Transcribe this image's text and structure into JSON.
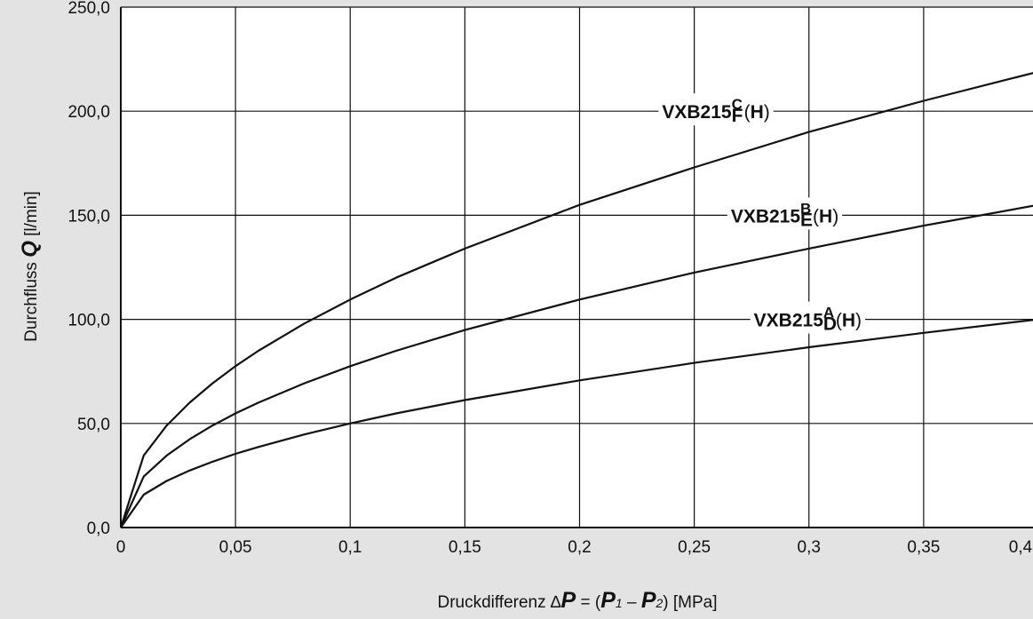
{
  "chart_data": {
    "type": "line",
    "xlabel": {
      "prefix": "Druckdifferenz  ",
      "delta": "∆",
      "p": "P",
      "eq": " = (",
      "p1": "P",
      "sub1": "1",
      "minus": " – ",
      "p2": "P",
      "sub2": "2",
      "close": ")",
      "unit": " [MPa]"
    },
    "ylabel": {
      "prefix": "Durchfluss  ",
      "q": "Q",
      "unit": " [l/min]"
    },
    "xlim": [
      0,
      0.4
    ],
    "ylim": [
      0,
      250
    ],
    "x_ticks": [
      {
        "value": 0,
        "label": "0"
      },
      {
        "value": 0.05,
        "label": "0,05"
      },
      {
        "value": 0.1,
        "label": "0,1"
      },
      {
        "value": 0.15,
        "label": "0,15"
      },
      {
        "value": 0.2,
        "label": "0,2"
      },
      {
        "value": 0.25,
        "label": "0,25"
      },
      {
        "value": 0.3,
        "label": "0,3"
      },
      {
        "value": 0.35,
        "label": "0,35"
      },
      {
        "value": 0.4,
        "label": "0,4"
      }
    ],
    "y_ticks": [
      {
        "value": 0,
        "label": "0,0"
      },
      {
        "value": 50,
        "label": "50,0"
      },
      {
        "value": 100,
        "label": "100,0"
      },
      {
        "value": 150,
        "label": "150,0"
      },
      {
        "value": 200,
        "label": "200,0"
      },
      {
        "value": 250,
        "label": "250,0"
      }
    ],
    "grid": true,
    "series": [
      {
        "label_main": "VXB215",
        "label_sup": "C",
        "label_sub": "F",
        "label_open": " (",
        "label_h": "H",
        "label_close": ")",
        "label_at": {
          "x": 0.265,
          "y": 200
        },
        "x": [
          0,
          0.01,
          0.02,
          0.03,
          0.04,
          0.05,
          0.06,
          0.08,
          0.1,
          0.12,
          0.15,
          0.2,
          0.25,
          0.3,
          0.35,
          0.4
        ],
        "y": [
          0,
          34.6,
          49,
          60,
          69.3,
          77.5,
          84.9,
          98,
          109.5,
          120,
          134,
          155,
          173,
          190,
          205,
          219
        ]
      },
      {
        "label_main": "VXB215",
        "label_sup": "B",
        "label_sub": "E",
        "label_open": " (",
        "label_h": "H",
        "label_close": ")",
        "label_at": {
          "x": 0.295,
          "y": 150
        },
        "x": [
          0,
          0.01,
          0.02,
          0.03,
          0.04,
          0.05,
          0.06,
          0.08,
          0.1,
          0.12,
          0.15,
          0.2,
          0.25,
          0.3,
          0.35,
          0.4
        ],
        "y": [
          0,
          24.5,
          34.6,
          42.4,
          49,
          54.8,
          60,
          69.3,
          77.5,
          84.9,
          94.9,
          109.5,
          122.5,
          134,
          145,
          155
        ]
      },
      {
        "label_main": "VXB215",
        "label_sup": "A",
        "label_sub": "D",
        "label_open": " (",
        "label_h": "H",
        "label_close": ")",
        "label_at": {
          "x": 0.305,
          "y": 100
        },
        "x": [
          0,
          0.01,
          0.02,
          0.03,
          0.04,
          0.05,
          0.06,
          0.08,
          0.1,
          0.12,
          0.15,
          0.2,
          0.25,
          0.3,
          0.35,
          0.4
        ],
        "y": [
          0,
          15.8,
          22.4,
          27.4,
          31.6,
          35.4,
          38.7,
          44.7,
          50,
          54.8,
          61.2,
          70.7,
          79.1,
          86.6,
          93.5,
          100
        ]
      }
    ]
  }
}
